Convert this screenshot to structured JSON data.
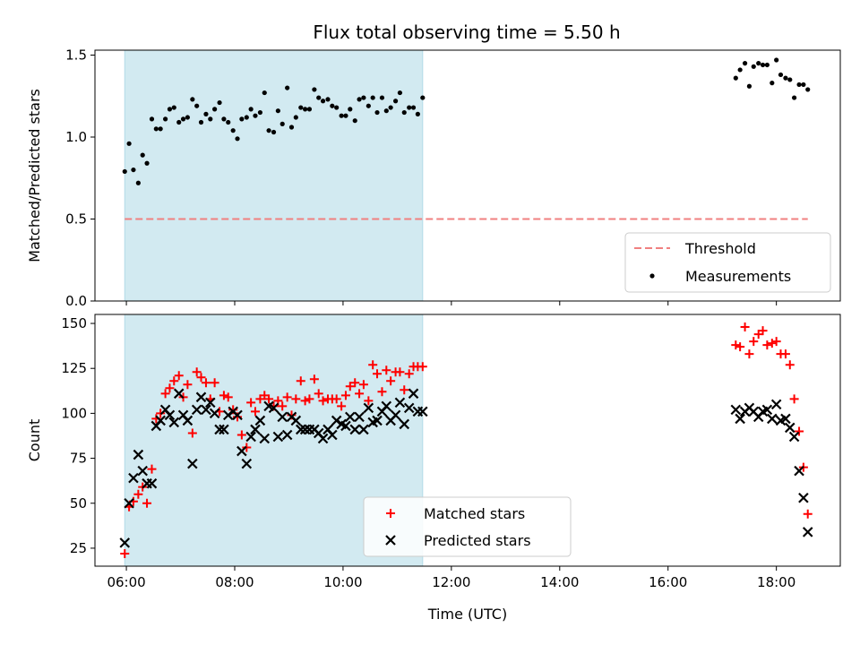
{
  "chart_data": [
    {
      "type": "scatter",
      "title": "Flux total observing time = 5.50 h",
      "xlabel": "",
      "ylabel": "Matched/Predicted stars",
      "xlim": [
        5.42,
        19.18
      ],
      "ylim": [
        0.0,
        1.53
      ],
      "yticks": [
        "0.0",
        "0.5",
        "1.0",
        "1.5"
      ],
      "shaded_span": {
        "from": 5.97,
        "to": 11.47,
        "color": "#add8e6"
      },
      "legend_position": "lower right",
      "threshold": {
        "name": "Threshold",
        "value": 0.5,
        "x_range": [
          5.97,
          18.58
        ],
        "color": "#f08080",
        "style": "dashed"
      },
      "series": [
        {
          "name": "Measurements",
          "color": "#000000",
          "marker": "dot",
          "x": [
            5.97,
            6.05,
            6.13,
            6.22,
            6.3,
            6.38,
            6.47,
            6.55,
            6.63,
            6.72,
            6.8,
            6.88,
            6.97,
            7.05,
            7.13,
            7.22,
            7.3,
            7.38,
            7.47,
            7.55,
            7.63,
            7.72,
            7.8,
            7.88,
            7.97,
            8.05,
            8.13,
            8.22,
            8.3,
            8.38,
            8.47,
            8.55,
            8.63,
            8.72,
            8.8,
            8.88,
            8.97,
            9.05,
            9.13,
            9.22,
            9.3,
            9.38,
            9.47,
            9.55,
            9.63,
            9.72,
            9.8,
            9.88,
            9.97,
            10.05,
            10.13,
            10.22,
            10.3,
            10.38,
            10.47,
            10.55,
            10.63,
            10.72,
            10.8,
            10.88,
            10.97,
            11.05,
            11.13,
            11.22,
            11.3,
            11.38,
            11.47,
            17.25,
            17.33,
            17.42,
            17.5,
            17.58,
            17.67,
            17.75,
            17.83,
            17.92,
            18.0,
            18.08,
            18.17,
            18.25,
            18.33,
            18.42,
            18.5,
            18.58
          ],
          "y": [
            0.79,
            0.96,
            0.8,
            0.72,
            0.89,
            0.84,
            1.11,
            1.05,
            1.05,
            1.11,
            1.17,
            1.18,
            1.09,
            1.11,
            1.12,
            1.23,
            1.19,
            1.09,
            1.14,
            1.11,
            1.17,
            1.21,
            1.11,
            1.09,
            1.04,
            0.99,
            1.11,
            1.12,
            1.17,
            1.13,
            1.15,
            1.27,
            1.04,
            1.03,
            1.16,
            1.08,
            1.3,
            1.06,
            1.12,
            1.18,
            1.17,
            1.17,
            1.29,
            1.24,
            1.22,
            1.23,
            1.19,
            1.18,
            1.13,
            1.13,
            1.17,
            1.1,
            1.23,
            1.24,
            1.19,
            1.24,
            1.15,
            1.24,
            1.16,
            1.18,
            1.22,
            1.27,
            1.15,
            1.18,
            1.18,
            1.14,
            1.24,
            1.36,
            1.41,
            1.45,
            1.31,
            1.43,
            1.45,
            1.44,
            1.44,
            1.33,
            1.47,
            1.38,
            1.36,
            1.35,
            1.24,
            1.32,
            1.32,
            1.29
          ]
        }
      ]
    },
    {
      "type": "scatter",
      "title": "",
      "xlabel": "Time (UTC)",
      "ylabel": "Count",
      "xlim": [
        5.42,
        19.18
      ],
      "ylim": [
        15.0,
        155.0
      ],
      "yticks": [
        "25",
        "50",
        "75",
        "100",
        "125",
        "150"
      ],
      "xticks": [
        {
          "value": 6,
          "label": "06:00"
        },
        {
          "value": 8,
          "label": "08:00"
        },
        {
          "value": 10,
          "label": "10:00"
        },
        {
          "value": 12,
          "label": "12:00"
        },
        {
          "value": 14,
          "label": "14:00"
        },
        {
          "value": 16,
          "label": "16:00"
        },
        {
          "value": 18,
          "label": "18:00"
        }
      ],
      "shaded_span": {
        "from": 5.97,
        "to": 11.47,
        "color": "#add8e6"
      },
      "legend_position": "lower center",
      "series": [
        {
          "name": "Matched stars",
          "color": "#ff0000",
          "marker": "plus",
          "x": [
            5.97,
            6.05,
            6.13,
            6.22,
            6.3,
            6.38,
            6.47,
            6.55,
            6.63,
            6.72,
            6.8,
            6.88,
            6.97,
            7.05,
            7.13,
            7.22,
            7.3,
            7.38,
            7.47,
            7.55,
            7.63,
            7.72,
            7.8,
            7.88,
            7.97,
            8.05,
            8.13,
            8.22,
            8.3,
            8.38,
            8.47,
            8.55,
            8.63,
            8.72,
            8.8,
            8.88,
            8.97,
            9.05,
            9.13,
            9.22,
            9.3,
            9.38,
            9.47,
            9.55,
            9.63,
            9.72,
            9.8,
            9.88,
            9.97,
            10.05,
            10.13,
            10.22,
            10.3,
            10.38,
            10.47,
            10.55,
            10.63,
            10.72,
            10.8,
            10.88,
            10.97,
            11.05,
            11.13,
            11.22,
            11.3,
            11.38,
            11.47,
            17.25,
            17.33,
            17.42,
            17.5,
            17.58,
            17.67,
            17.75,
            17.83,
            17.92,
            18.0,
            18.08,
            18.17,
            18.25,
            18.33,
            18.42,
            18.5,
            18.58
          ],
          "y": [
            22,
            48,
            51,
            55,
            59,
            50,
            69,
            97,
            100,
            111,
            114,
            118,
            121,
            109,
            116,
            89,
            123,
            120,
            117,
            108,
            117,
            101,
            110,
            109,
            102,
            98,
            88,
            81,
            106,
            101,
            108,
            110,
            108,
            104,
            107,
            104,
            109,
            99,
            108,
            118,
            107,
            108,
            119,
            111,
            107,
            108,
            108,
            108,
            104,
            110,
            115,
            117,
            111,
            116,
            107,
            127,
            122,
            112,
            124,
            118,
            123,
            123,
            113,
            122,
            126,
            126,
            126,
            138,
            137,
            148,
            133,
            140,
            144,
            146,
            138,
            139,
            140,
            133,
            133,
            127,
            108,
            90,
            70,
            44
          ]
        },
        {
          "name": "Predicted stars",
          "color": "#000000",
          "marker": "x",
          "x": [
            5.97,
            6.05,
            6.13,
            6.22,
            6.3,
            6.38,
            6.47,
            6.55,
            6.63,
            6.72,
            6.8,
            6.88,
            6.97,
            7.05,
            7.13,
            7.22,
            7.3,
            7.38,
            7.47,
            7.55,
            7.63,
            7.72,
            7.8,
            7.88,
            7.97,
            8.05,
            8.13,
            8.22,
            8.3,
            8.38,
            8.47,
            8.55,
            8.63,
            8.72,
            8.8,
            8.88,
            8.97,
            9.05,
            9.13,
            9.22,
            9.3,
            9.38,
            9.47,
            9.55,
            9.63,
            9.72,
            9.8,
            9.88,
            9.97,
            10.05,
            10.13,
            10.22,
            10.3,
            10.38,
            10.47,
            10.55,
            10.63,
            10.72,
            10.8,
            10.88,
            10.97,
            11.05,
            11.13,
            11.22,
            11.3,
            11.38,
            11.47,
            17.25,
            17.33,
            17.42,
            17.5,
            17.58,
            17.67,
            17.75,
            17.83,
            17.92,
            18.0,
            18.08,
            18.17,
            18.25,
            18.33,
            18.42,
            18.5,
            18.58
          ],
          "y": [
            28,
            50,
            64,
            77,
            68,
            61,
            61,
            93,
            96,
            102,
            99,
            95,
            111,
            99,
            96,
            72,
            102,
            109,
            102,
            106,
            100,
            91,
            91,
            99,
            101,
            99,
            79,
            72,
            87,
            91,
            96,
            86,
            104,
            103,
            87,
            98,
            88,
            98,
            96,
            91,
            91,
            91,
            91,
            89,
            86,
            91,
            88,
            96,
            94,
            93,
            98,
            91,
            98,
            91,
            103,
            95,
            96,
            101,
            104,
            96,
            99,
            106,
            94,
            103,
            111,
            101,
            101,
            102,
            97,
            101,
            103,
            101,
            98,
            101,
            102,
            97,
            105,
            96,
            97,
            92,
            87,
            68,
            53,
            34
          ]
        }
      ]
    }
  ]
}
